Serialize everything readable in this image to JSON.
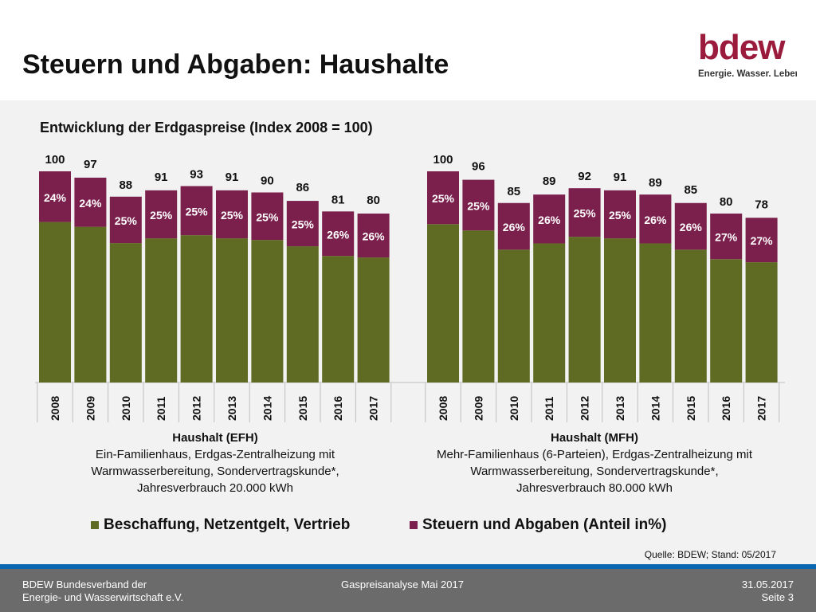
{
  "title": "Steuern und Abgaben: Haushalte",
  "logo": {
    "brand": "bdew",
    "tagline": "Energie. Wasser. Leben."
  },
  "colors": {
    "beschaffung": "#5f6b22",
    "steuern": "#7b1f4c",
    "panel": "#f2f2f2",
    "footer": "#6b6b6b",
    "accent": "#0b67b2",
    "logo": "#9b1b3c"
  },
  "chart_data": {
    "type": "bar",
    "stacked": true,
    "title": "Entwicklung der Erdgaspreise (Index 2008 = 100)",
    "ylim": [
      0,
      100
    ],
    "grid": false,
    "legend_position": "bottom",
    "series_names": [
      "Beschaffung, Netzentgelt, Vertrieb",
      "Steuern und Abgaben (Anteil in%)"
    ],
    "groups": [
      {
        "heading": "Haushalt (EFH)",
        "description": [
          "Ein-Familienhaus, Erdgas-Zentralheizung mit",
          "Warmwasserbereitung, Sondervertragskunde*,",
          "Jahresverbrauch 20.000 kWh"
        ],
        "years": [
          "2008",
          "2009",
          "2010",
          "2011",
          "2012",
          "2013",
          "2014",
          "2015",
          "2016",
          "2017"
        ],
        "totals": [
          100,
          97,
          88,
          91,
          93,
          91,
          90,
          86,
          81,
          80
        ],
        "tax_labels": [
          "24%",
          "24%",
          "25%",
          "25%",
          "25%",
          "25%",
          "25%",
          "25%",
          "26%",
          "26%"
        ],
        "tax_share": [
          24,
          24,
          25,
          25,
          25,
          25,
          25,
          25,
          26,
          26
        ]
      },
      {
        "heading": "Haushalt (MFH)",
        "description": [
          "Mehr-Familienhaus (6-Parteien), Erdgas-Zentralheizung mit",
          "Warmwasserbereitung, Sondervertragskunde*,",
          "Jahresverbrauch 80.000 kWh"
        ],
        "years": [
          "2008",
          "2009",
          "2010",
          "2011",
          "2012",
          "2013",
          "2014",
          "2015",
          "2016",
          "2017"
        ],
        "totals": [
          100,
          96,
          85,
          89,
          92,
          91,
          89,
          85,
          80,
          78
        ],
        "tax_labels": [
          "25%",
          "25%",
          "26%",
          "26%",
          "25%",
          "25%",
          "26%",
          "26%",
          "27%",
          "27%"
        ],
        "tax_share": [
          25,
          25,
          26,
          26,
          25,
          25,
          26,
          26,
          27,
          27
        ]
      }
    ]
  },
  "legend": {
    "item1": "Beschaffung, Netzentgelt, Vertrieb",
    "item2": "Steuern und Abgaben (Anteil in%)"
  },
  "source": "Quelle: BDEW; Stand: 05/2017",
  "footer": {
    "org_line1": "BDEW Bundesverband der",
    "org_line2": "Energie- und Wasserwirtschaft e.V.",
    "document": "Gaspreisanalyse Mai 2017",
    "date": "31.05.2017",
    "page": "Seite 3"
  }
}
